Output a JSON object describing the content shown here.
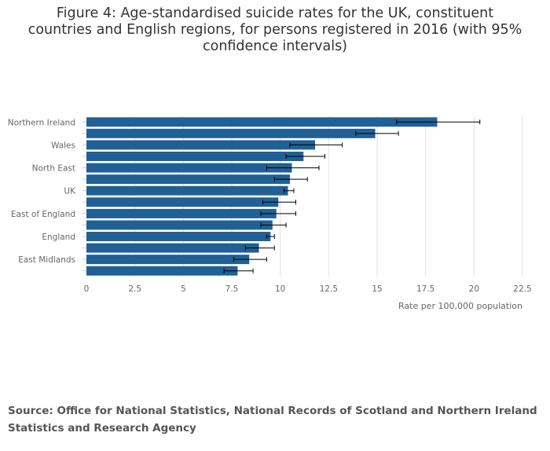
{
  "title": "Figure 4: Age-standardised suicide rates for the UK, constituent countries and English regions, for persons registered in 2016 (with 95% confidence intervals)",
  "source": "Source: Office for National Statistics, National Records of Scotland and Northern Ireland Statistics and Research Agency",
  "colors": {
    "bar": "#206095",
    "error_bar": "#000000",
    "grid": "#e0e0e0",
    "tick_text": "#666666"
  },
  "chart_data": {
    "type": "bar",
    "orientation": "horizontal",
    "categories": [
      "Northern Ireland",
      "",
      "Wales",
      "",
      "North East",
      "",
      "UK",
      "",
      "East of England",
      "",
      "England",
      "",
      "East Midlands",
      ""
    ],
    "values": [
      18.1,
      14.9,
      11.8,
      11.2,
      10.6,
      10.5,
      10.4,
      9.9,
      9.8,
      9.6,
      9.5,
      8.9,
      8.4,
      7.8
    ],
    "ci_lower": [
      16.0,
      13.9,
      10.5,
      10.3,
      9.3,
      9.7,
      10.2,
      9.1,
      9.0,
      9.0,
      9.3,
      8.2,
      7.6,
      7.1
    ],
    "ci_upper": [
      20.3,
      16.1,
      13.2,
      12.3,
      12.0,
      11.4,
      10.7,
      10.8,
      10.8,
      10.3,
      9.7,
      9.7,
      9.3,
      8.6
    ],
    "xlim": [
      0,
      22.5
    ],
    "xticks": [
      "0",
      "2.5",
      "5",
      "7.5",
      "10",
      "12.5",
      "15",
      "17.5",
      "20",
      "22.5"
    ],
    "xlabel": "Rate per 100,000 population",
    "grid": true
  }
}
